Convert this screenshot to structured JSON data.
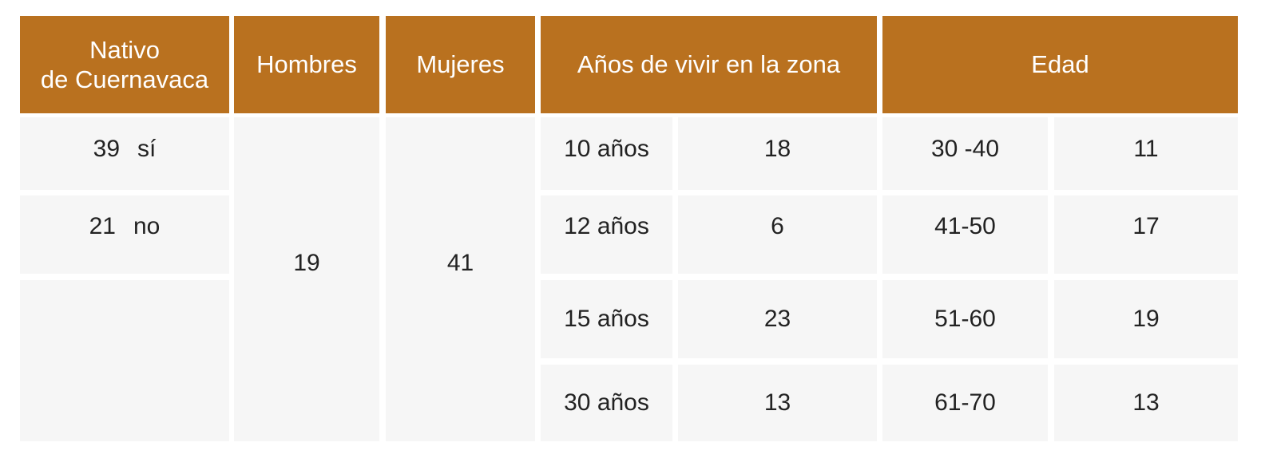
{
  "header": {
    "native": "Nativo\nde Cuernavaca",
    "men": "Hombres",
    "women": "Mujeres",
    "years": "Años de vivir en la zona",
    "age": "Edad"
  },
  "native": [
    {
      "count": 39,
      "label": "sí"
    },
    {
      "count": 21,
      "label": "no"
    }
  ],
  "men": 19,
  "women": 41,
  "years": [
    {
      "label": "10 años",
      "value": 18
    },
    {
      "label": "12 años",
      "value": 6
    },
    {
      "label": "15 años",
      "value": 23
    },
    {
      "label": "30 años",
      "value": 13
    }
  ],
  "ages": [
    {
      "range": "30 -40",
      "value": 11
    },
    {
      "range": "41-50",
      "value": 17
    },
    {
      "range": "51-60",
      "value": 19
    },
    {
      "range": "61-70",
      "value": 13
    }
  ]
}
